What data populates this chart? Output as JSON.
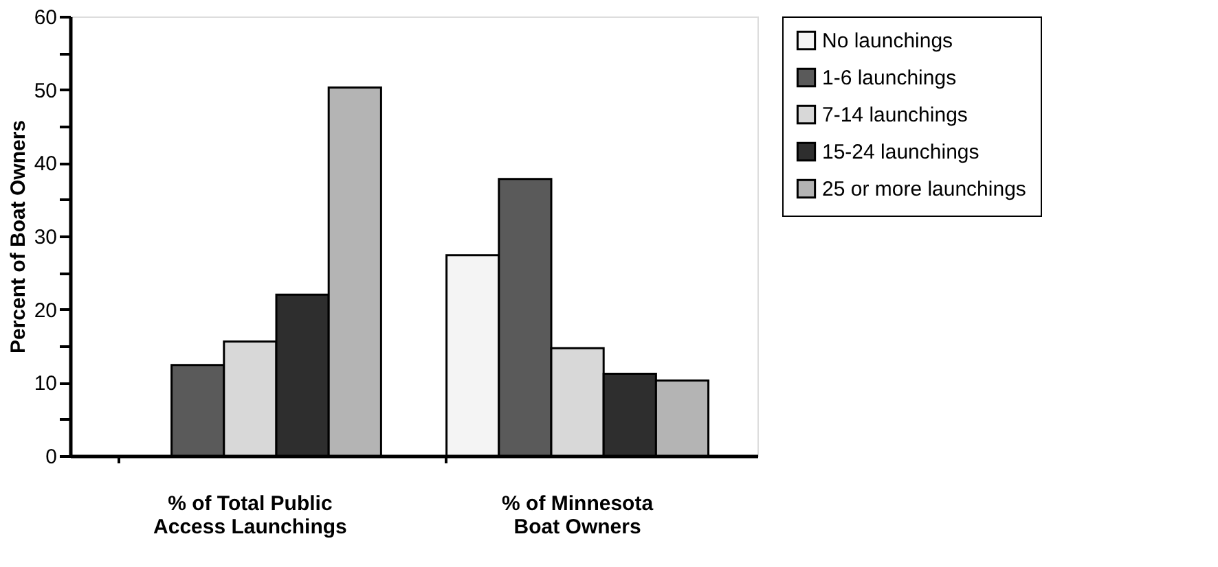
{
  "chart_data": {
    "type": "bar",
    "ylabel": "Percent of Boat Owners",
    "categories": [
      "% of Total Public\nAccess Launchings",
      "% of Minnesota\nBoat Owners"
    ],
    "series": [
      {
        "name": "No launchings",
        "color": "#f4f4f4",
        "values": [
          null,
          27.4
        ]
      },
      {
        "name": "1-6 launchings",
        "color": "#5a5a5a",
        "values": [
          12.4,
          37.8
        ]
      },
      {
        "name": "7-14 launchings",
        "color": "#d8d8d8",
        "values": [
          15.6,
          14.7
        ]
      },
      {
        "name": "15-24 launchings",
        "color": "#2e2e2e",
        "values": [
          22,
          11.2
        ]
      },
      {
        "name": "25 or more launchings",
        "color": "#b4b4b4",
        "values": [
          50.3,
          10.3
        ]
      }
    ],
    "ylim": [
      0,
      60
    ],
    "yticks": [
      0,
      {
        "value": 5,
        "label": null
      },
      10,
      {
        "value": 15,
        "label": null
      },
      20,
      {
        "value": 25,
        "label": null
      },
      30,
      {
        "value": 35,
        "label": null
      },
      40,
      {
        "value": 45,
        "label": null
      },
      50,
      {
        "value": 55,
        "label": null
      },
      60
    ],
    "grid": false,
    "legend": "top right"
  }
}
